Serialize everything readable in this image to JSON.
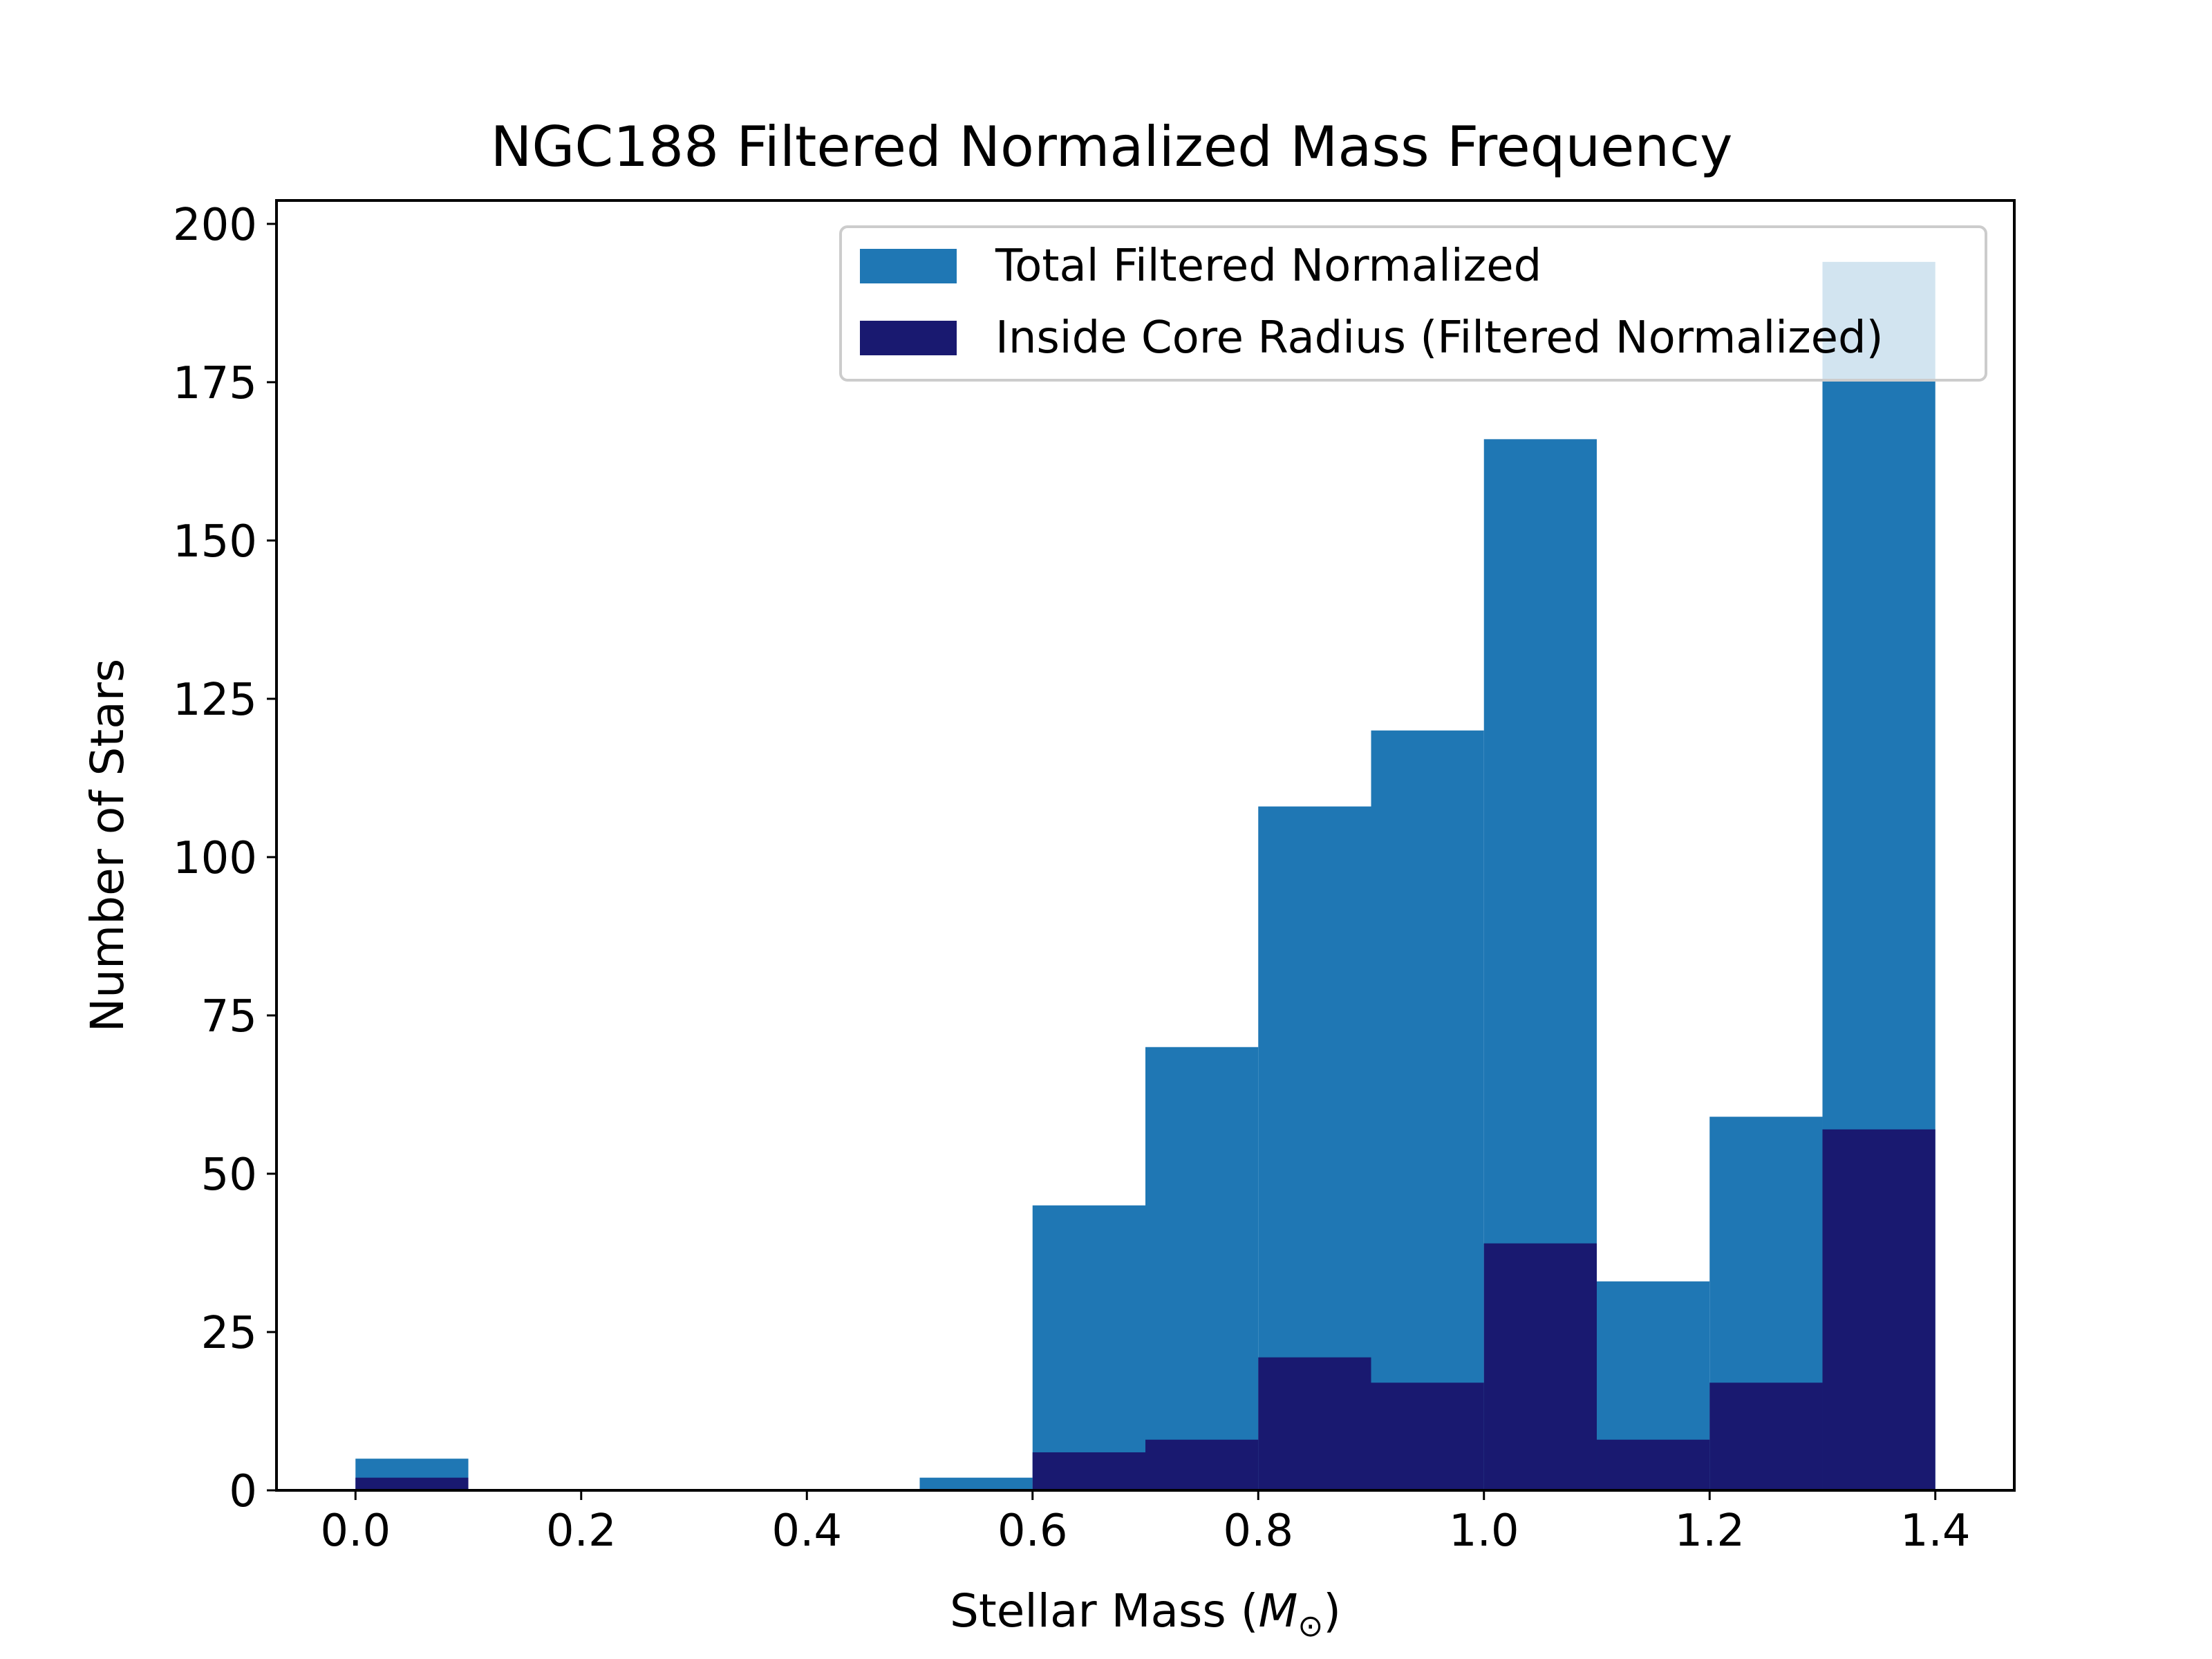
{
  "chart_data": {
    "type": "bar",
    "title": "NGC188 Filtered Normalized Mass Frequency",
    "xlabel": "Stellar Mass (M⊙)",
    "xlabel_parts": {
      "prefix": "Stellar Mass (",
      "symbol": "M",
      "subscript": "⊙",
      "suffix": ")"
    },
    "ylabel": "Number of Stars",
    "xlim": [
      -0.07,
      1.47
    ],
    "ylim": [
      0,
      203.7
    ],
    "xticks": [
      0.0,
      0.2,
      0.4,
      0.6,
      0.8,
      1.0,
      1.2,
      1.4
    ],
    "xtick_labels": [
      "0.0",
      "0.2",
      "0.4",
      "0.6",
      "0.8",
      "1.0",
      "1.2",
      "1.4"
    ],
    "yticks": [
      0,
      25,
      50,
      75,
      100,
      125,
      150,
      175,
      200
    ],
    "ytick_labels": [
      "0",
      "25",
      "50",
      "75",
      "100",
      "125",
      "150",
      "175",
      "200"
    ],
    "bin_edges": [
      0.0,
      0.1,
      0.2,
      0.3,
      0.4,
      0.5,
      0.6,
      0.7,
      0.8,
      0.9,
      1.0,
      1.1,
      1.2,
      1.3,
      1.4
    ],
    "series": [
      {
        "name": "Total Filtered Normalized",
        "color": "#1f77b4",
        "values": [
          5,
          0,
          0,
          0,
          0,
          2,
          45,
          70,
          108,
          120,
          166,
          33,
          59,
          194
        ]
      },
      {
        "name": "Inside Core Radius (Filtered Normalized)",
        "color": "#191970",
        "values": [
          2,
          0,
          0,
          0,
          0,
          0,
          6,
          8,
          21,
          17,
          39,
          8,
          17,
          57
        ]
      }
    ],
    "legend": {
      "position": "top-right"
    },
    "grid": false
  }
}
